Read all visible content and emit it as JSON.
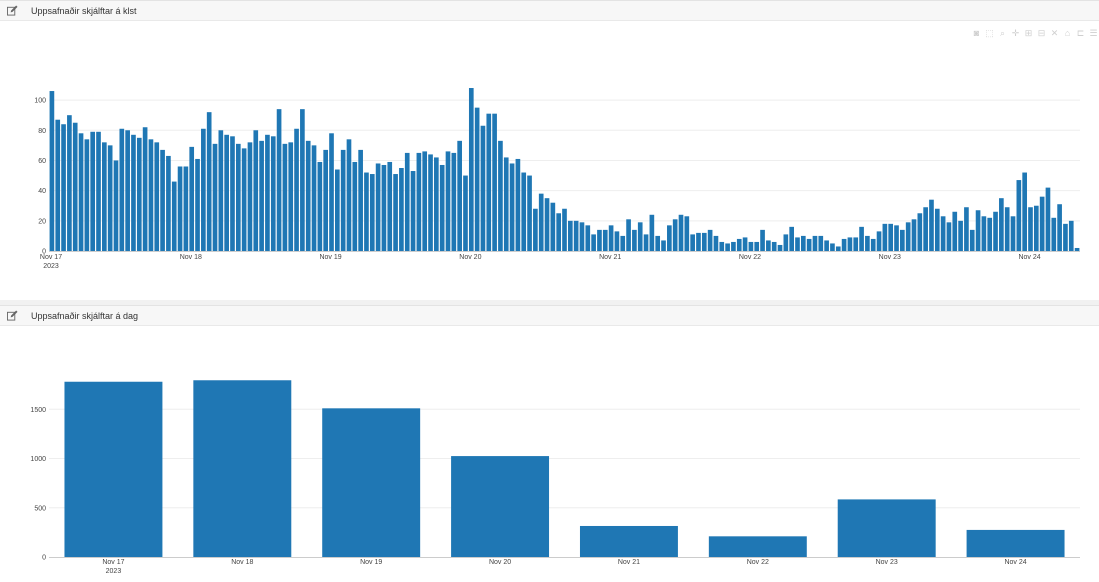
{
  "colors": {
    "bar": "#1f77b4",
    "grid": "#eeeeee",
    "axis": "#444444"
  },
  "panels": {
    "hourly": {
      "title": "Uppsafnaðir skjálftar á klst"
    },
    "daily": {
      "title": "Uppsafnaðir skjálftar á dag"
    }
  },
  "modebar": {
    "icons": [
      "camera-icon",
      "zoom-box-icon",
      "zoom-icon",
      "pan-icon",
      "zoom-in-icon",
      "zoom-out-icon",
      "autoscale-icon",
      "reset-axes-icon",
      "spike-lines-icon",
      "hover-icon"
    ],
    "glyphs": [
      "◙",
      "⬚",
      "⌕",
      "✛",
      "⊞",
      "⊟",
      "✕",
      "⌂",
      "⊏",
      "☰"
    ]
  },
  "chart_data": [
    {
      "type": "bar",
      "title": "Uppsafnaðir skjálftar á klst",
      "x_start": "2023-11-17 00:00",
      "x_step": "1 hour",
      "x_tick_labels": [
        "Nov 17\n2023",
        "Nov 18",
        "Nov 19",
        "Nov 20",
        "Nov 21",
        "Nov 22",
        "Nov 23",
        "Nov 24"
      ],
      "ylim": [
        0,
        110
      ],
      "y_ticks": [
        0,
        20,
        40,
        60,
        80,
        100
      ],
      "grid": true,
      "values": [
        106,
        87,
        84,
        90,
        85,
        78,
        74,
        79,
        79,
        72,
        70,
        60,
        81,
        80,
        77,
        75,
        82,
        74,
        72,
        67,
        63,
        46,
        56,
        56,
        69,
        61,
        81,
        92,
        71,
        80,
        77,
        76,
        71,
        68,
        72,
        80,
        73,
        77,
        76,
        94,
        71,
        72,
        81,
        94,
        73,
        70,
        59,
        67,
        78,
        54,
        67,
        74,
        59,
        67,
        52,
        51,
        58,
        57,
        59,
        51,
        55,
        65,
        53,
        65,
        66,
        64,
        62,
        57,
        66,
        65,
        73,
        50,
        108,
        95,
        83,
        91,
        91,
        73,
        62,
        58,
        61,
        52,
        50,
        28,
        38,
        35,
        32,
        25,
        28,
        20,
        20,
        19,
        17,
        11,
        14,
        14,
        17,
        13,
        10,
        21,
        14,
        19,
        11,
        24,
        10,
        7,
        17,
        21,
        24,
        23,
        11,
        12,
        12,
        14,
        10,
        6,
        5,
        6,
        8,
        9,
        6,
        6,
        14,
        7,
        6,
        4,
        11,
        16,
        9,
        10,
        8,
        10,
        10,
        7,
        5,
        3,
        8,
        9,
        9,
        16,
        10,
        8,
        13,
        18,
        18,
        17,
        14,
        19,
        21,
        25,
        29,
        34,
        28,
        23,
        19,
        26,
        20,
        29,
        14,
        27,
        23,
        22,
        26,
        35,
        29,
        23,
        47,
        52,
        29,
        30,
        36,
        42,
        22,
        31,
        18,
        20,
        2
      ]
    },
    {
      "type": "bar",
      "title": "Uppsafnaðir skjálftar á dag",
      "categories": [
        "Nov 17\n2023",
        "Nov 18",
        "Nov 19",
        "Nov 20",
        "Nov 21",
        "Nov 22",
        "Nov 23",
        "Nov 24"
      ],
      "values": [
        1780,
        1795,
        1510,
        1025,
        315,
        210,
        585,
        275
      ],
      "ylim": [
        0,
        1950
      ],
      "y_ticks": [
        0,
        500,
        1000,
        1500
      ],
      "grid": true
    }
  ]
}
